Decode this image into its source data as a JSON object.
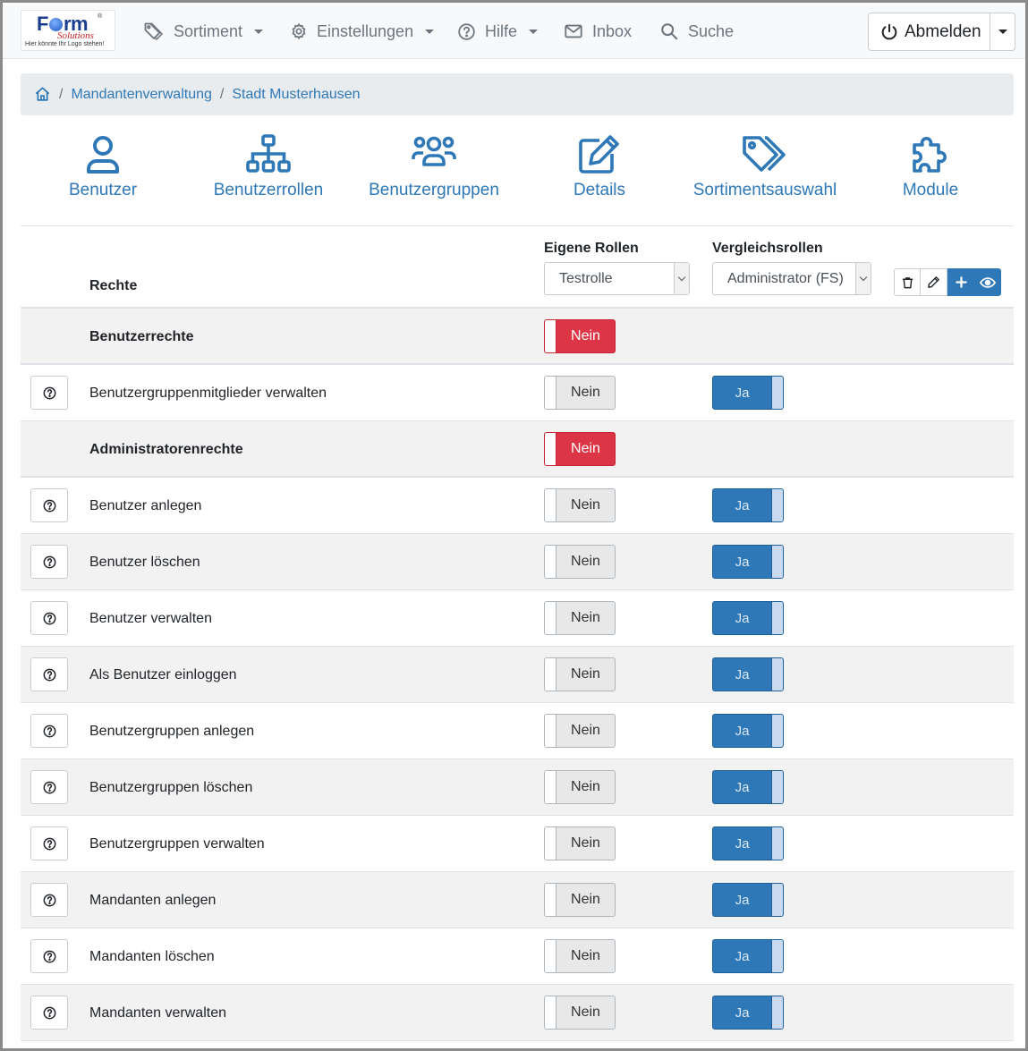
{
  "logo": {
    "main_prefix": "F",
    "main_suffix": "rm",
    "tm": "®",
    "sub": "Solutions",
    "tagline": "Hier könnte Ihr Logo stehen!"
  },
  "nav": {
    "sortiment": "Sortiment",
    "einstellungen": "Einstellungen",
    "hilfe": "Hilfe",
    "inbox": "Inbox",
    "suche": "Suche",
    "abmelden": "Abmelden"
  },
  "breadcrumb": {
    "items": [
      "Mandantenverwaltung",
      "Stadt Musterhausen"
    ],
    "separator": "/"
  },
  "tiles": [
    "Benutzer",
    "Benutzerrollen",
    "Benutzergruppen",
    "Details",
    "Sortimentsauswahl",
    "Module"
  ],
  "table": {
    "header_rechte": "Rechte",
    "header_eigene": "Eigene Rollen",
    "header_vergleich": "Vergleichsrollen",
    "eigene_select": "Testrolle",
    "vergleich_select": "Administrator (FS)"
  },
  "toggle_text": {
    "off": "Nein",
    "on": "Ja"
  },
  "rows": [
    {
      "type": "section",
      "label": "Benutzerrechte",
      "own": "Nein"
    },
    {
      "type": "item",
      "label": "Benutzergruppenmitglieder verwalten",
      "own": "Nein",
      "cmp": "Ja"
    },
    {
      "type": "section",
      "label": "Administratorenrechte",
      "own": "Nein"
    },
    {
      "type": "item",
      "label": "Benutzer anlegen",
      "own": "Nein",
      "cmp": "Ja"
    },
    {
      "type": "item",
      "label": "Benutzer löschen",
      "own": "Nein",
      "cmp": "Ja"
    },
    {
      "type": "item",
      "label": "Benutzer verwalten",
      "own": "Nein",
      "cmp": "Ja"
    },
    {
      "type": "item",
      "label": "Als Benutzer einloggen",
      "own": "Nein",
      "cmp": "Ja"
    },
    {
      "type": "item",
      "label": "Benutzergruppen anlegen",
      "own": "Nein",
      "cmp": "Ja"
    },
    {
      "type": "item",
      "label": "Benutzergruppen löschen",
      "own": "Nein",
      "cmp": "Ja"
    },
    {
      "type": "item",
      "label": "Benutzergruppen verwalten",
      "own": "Nein",
      "cmp": "Ja"
    },
    {
      "type": "item",
      "label": "Mandanten anlegen",
      "own": "Nein",
      "cmp": "Ja"
    },
    {
      "type": "item",
      "label": "Mandanten löschen",
      "own": "Nein",
      "cmp": "Ja"
    },
    {
      "type": "item",
      "label": "Mandanten verwalten",
      "own": "Nein",
      "cmp": "Ja"
    }
  ],
  "colors": {
    "primary": "#2f78b7",
    "danger": "#dc3545",
    "muted": "#6c757d"
  }
}
